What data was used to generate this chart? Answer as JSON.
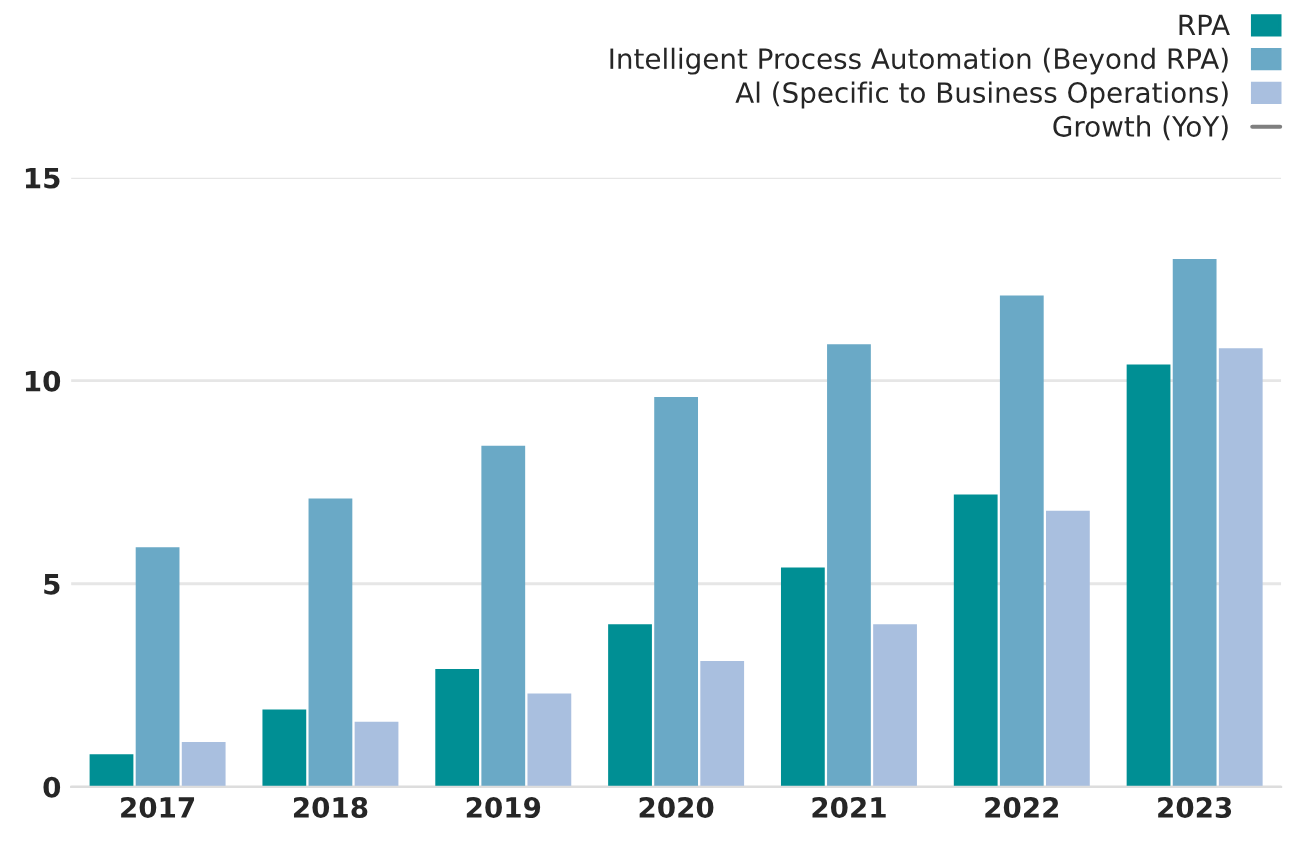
{
  "chart_data": {
    "type": "bar",
    "categories": [
      "2017",
      "2018",
      "2019",
      "2020",
      "2021",
      "2022",
      "2023"
    ],
    "series": [
      {
        "name": "RPA",
        "color": "#008f94",
        "values": [
          0.8,
          1.9,
          2.9,
          4.0,
          5.4,
          7.2,
          10.4
        ]
      },
      {
        "name": "Intelligent Process Automation (Beyond RPA)",
        "color": "#6aa9c6",
        "values": [
          5.9,
          7.1,
          8.4,
          9.6,
          10.9,
          12.1,
          13.0
        ]
      },
      {
        "name": "Al (Specific to Business Operations)",
        "color": "#a9bfdf",
        "values": [
          1.1,
          1.6,
          2.3,
          3.1,
          4.0,
          6.8,
          10.8
        ]
      },
      {
        "name": "Growth (YoY)",
        "type": "line",
        "color": "#7f7f7f",
        "values": [
          null,
          null,
          null,
          null,
          null,
          null,
          null
        ]
      }
    ],
    "ylim": [
      0,
      15
    ],
    "yticks": [
      0,
      5,
      10,
      15
    ],
    "grid": "y",
    "legend": "top right"
  }
}
